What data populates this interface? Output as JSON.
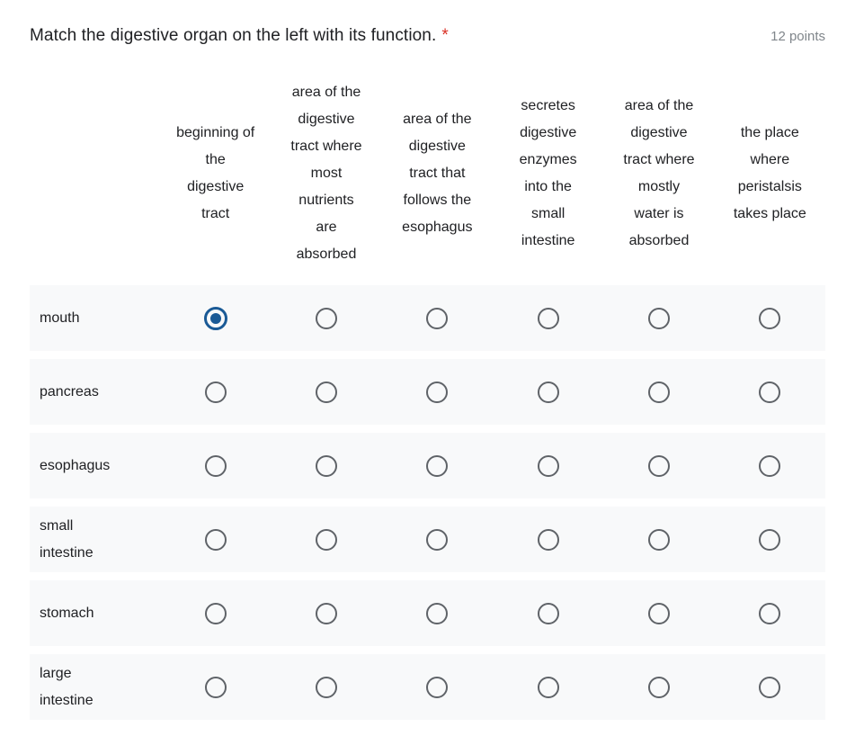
{
  "question": {
    "title": "Match the digestive organ on the left with its function.",
    "required_marker": "*",
    "points": "12 points"
  },
  "grid": {
    "column_headers": [
      "beginning of the digestive tract",
      "area of the digestive tract where most nutrients are absorbed",
      "area of the digestive tract that follows the esophagus",
      "secretes digestive enzymes into the small intestine",
      "area of the digestive tract where mostly water is absorbed",
      "the place where peristalsis takes place"
    ],
    "rows": [
      {
        "label": "mouth",
        "selected_column": 0
      },
      {
        "label": "pancreas",
        "selected_column": null
      },
      {
        "label": "esophagus",
        "selected_column": null
      },
      {
        "label": "small intestine",
        "selected_column": null
      },
      {
        "label": "stomach",
        "selected_column": null
      },
      {
        "label": "large intestine",
        "selected_column": null
      }
    ]
  },
  "colors": {
    "selected_radio": "#1a5a96",
    "unselected_radio_border": "#5f6368",
    "row_background": "#f8f9fa",
    "required_marker": "#d93025",
    "points_text": "#80868b",
    "text": "#202124"
  }
}
